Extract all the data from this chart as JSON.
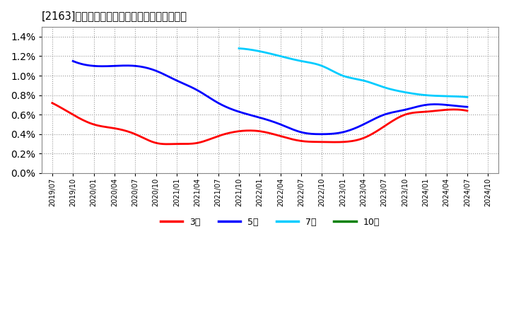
{
  "title": "[2163]  当期純利益マージンの標準偏差の推移",
  "background_color": "#ffffff",
  "plot_bg_color": "#ffffff",
  "grid_color": "#aaaaaa",
  "ylim": [
    0.0,
    0.015
  ],
  "yticks": [
    0.0,
    0.002,
    0.004,
    0.006,
    0.008,
    0.01,
    0.012,
    0.014
  ],
  "series": {
    "3year": {
      "color": "#ff0000",
      "label": "3年",
      "x": [
        "2019/07",
        "2019/10",
        "2020/01",
        "2020/04",
        "2020/07",
        "2020/10",
        "2021/01",
        "2021/04",
        "2021/07",
        "2021/10",
        "2022/01",
        "2022/04",
        "2022/07",
        "2022/10",
        "2023/01",
        "2023/04",
        "2023/07",
        "2023/10",
        "2024/01",
        "2024/04",
        "2024/07"
      ],
      "y": [
        0.0072,
        0.006,
        0.005,
        0.0046,
        0.004,
        0.0031,
        0.003,
        0.0031,
        0.0038,
        0.0043,
        0.0043,
        0.0038,
        0.0033,
        0.0032,
        0.0032,
        0.0036,
        0.0048,
        0.006,
        0.0063,
        0.0065,
        0.0064
      ]
    },
    "5year": {
      "color": "#0000ff",
      "label": "5年",
      "x": [
        "2019/10",
        "2020/01",
        "2020/04",
        "2020/07",
        "2020/10",
        "2021/01",
        "2021/04",
        "2021/07",
        "2021/10",
        "2022/01",
        "2022/04",
        "2022/07",
        "2022/10",
        "2023/01",
        "2023/04",
        "2023/07",
        "2023/10",
        "2024/01",
        "2024/04",
        "2024/07"
      ],
      "y": [
        0.0115,
        0.011,
        0.011,
        0.011,
        0.0105,
        0.0095,
        0.0085,
        0.0072,
        0.0063,
        0.0057,
        0.005,
        0.0042,
        0.004,
        0.0042,
        0.005,
        0.006,
        0.0065,
        0.007,
        0.007,
        0.0068
      ]
    },
    "7year": {
      "color": "#00ccff",
      "label": "7年",
      "x": [
        "2021/10",
        "2022/01",
        "2022/04",
        "2022/07",
        "2022/10",
        "2023/01",
        "2023/04",
        "2023/07",
        "2023/10",
        "2024/01",
        "2024/04",
        "2024/07"
      ],
      "y": [
        0.0128,
        0.0125,
        0.012,
        0.0115,
        0.011,
        0.01,
        0.0095,
        0.0088,
        0.0083,
        0.008,
        0.0079,
        0.0078
      ]
    },
    "10year": {
      "color": "#008000",
      "label": "10年",
      "x": [],
      "y": []
    }
  },
  "xtick_labels": [
    "2019/07",
    "2019/10",
    "2020/01",
    "2020/04",
    "2020/07",
    "2020/10",
    "2021/01",
    "2021/04",
    "2021/07",
    "2021/10",
    "2022/01",
    "2022/04",
    "2022/07",
    "2022/10",
    "2023/01",
    "2023/04",
    "2023/07",
    "2023/10",
    "2024/01",
    "2024/04",
    "2024/07",
    "2024/10"
  ],
  "legend_labels": [
    "3年",
    "5年",
    "7年",
    "10年"
  ],
  "legend_colors": [
    "#ff0000",
    "#0000ff",
    "#00ccff",
    "#008000"
  ]
}
